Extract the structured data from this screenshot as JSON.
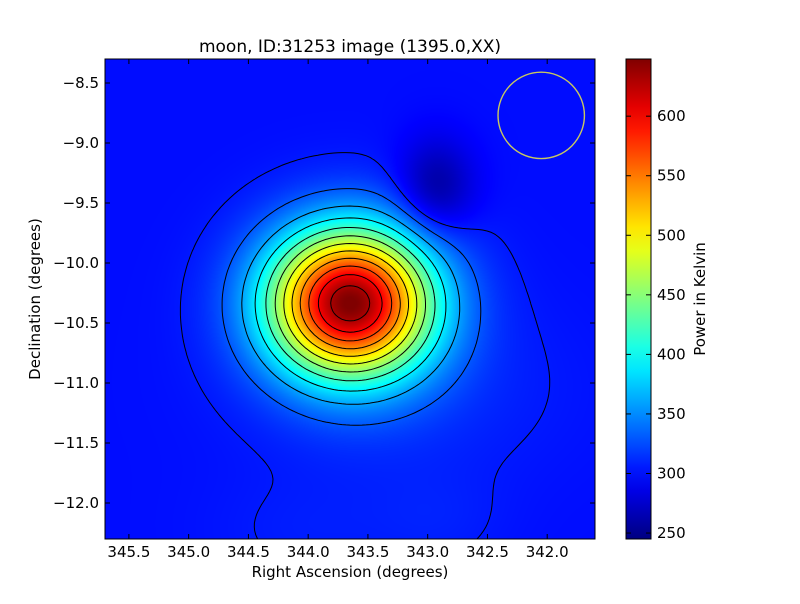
{
  "chart_data": {
    "type": "heatmap",
    "title": "moon, ID:31253 image (1395.0,XX)",
    "xlabel": "Right Ascension (degrees)",
    "ylabel": "Declination (degrees)",
    "colorbar_label": "Power in Kelvin",
    "colormap": "jet",
    "grid": false,
    "x_range": [
      345.7,
      341.6
    ],
    "y_range": [
      -12.3,
      -8.3
    ],
    "x_ticks": [
      {
        "value": 345.5,
        "label": "345.5"
      },
      {
        "value": 345.0,
        "label": "345.0"
      },
      {
        "value": 344.5,
        "label": "344.5"
      },
      {
        "value": 344.0,
        "label": "344.0"
      },
      {
        "value": 343.5,
        "label": "343.5"
      },
      {
        "value": 343.0,
        "label": "343.0"
      },
      {
        "value": 342.5,
        "label": "342.5"
      },
      {
        "value": 342.0,
        "label": "342.0"
      }
    ],
    "y_ticks": [
      {
        "value": -8.5,
        "label": "−8.5"
      },
      {
        "value": -9.0,
        "label": "−9.0"
      },
      {
        "value": -9.5,
        "label": "−9.5"
      },
      {
        "value": -10.0,
        "label": "−10.0"
      },
      {
        "value": -10.5,
        "label": "−10.5"
      },
      {
        "value": -11.0,
        "label": "−11.0"
      },
      {
        "value": -11.5,
        "label": "−11.5"
      },
      {
        "value": -12.0,
        "label": "−12.0"
      }
    ],
    "colorbar_range": [
      245,
      648
    ],
    "colorbar_ticks": [
      {
        "value": 250,
        "label": "250"
      },
      {
        "value": 300,
        "label": "300"
      },
      {
        "value": 350,
        "label": "350"
      },
      {
        "value": 400,
        "label": "400"
      },
      {
        "value": 450,
        "label": "450"
      },
      {
        "value": 500,
        "label": "500"
      },
      {
        "value": 550,
        "label": "550"
      },
      {
        "value": 600,
        "label": "600"
      }
    ],
    "background_level": 300,
    "features": [
      {
        "kind": "peak",
        "ra": 343.65,
        "dec": -10.33,
        "value": 645
      },
      {
        "kind": "trough",
        "ra": 342.93,
        "dec": -9.38,
        "value": 255
      }
    ],
    "contour_levels": [
      305,
      330,
      360,
      390,
      420,
      450,
      480,
      510,
      540,
      570,
      600,
      630
    ],
    "beam_circle": {
      "ra": 342.05,
      "dec": -8.77,
      "radius_deg": 0.36,
      "color": "#c8c860"
    }
  }
}
